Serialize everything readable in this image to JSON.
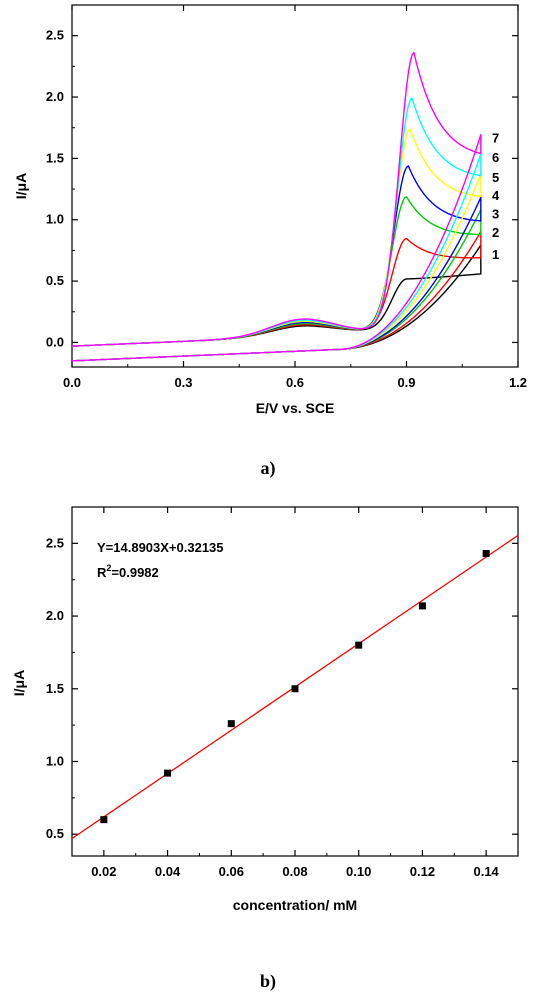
{
  "chart_data": [
    {
      "panel_label": "a)",
      "type": "line",
      "xlabel": "E/V vs. SCE",
      "ylabel": "I/μA",
      "xlim": [
        0.0,
        1.2
      ],
      "ylim": [
        -0.2,
        2.75
      ],
      "xticks": [
        "0.0",
        "0.3",
        "0.6",
        "0.9",
        "1.2"
      ],
      "yticks": [
        "0.0",
        "0.5",
        "1.0",
        "1.5",
        "2.0",
        "2.5"
      ],
      "grid": false,
      "legend": "none",
      "series": [
        {
          "name": "1",
          "color": "#000000",
          "peak_x": 0.9,
          "peak_y": 0.78,
          "end_y": 0.77,
          "ret_end_y": 0.78
        },
        {
          "name": "2",
          "color": "#ff0000",
          "peak_x": 0.9,
          "peak_y": 1.11,
          "end_y": 0.89,
          "ret_end_y": 0.89
        },
        {
          "name": "3",
          "color": "#00cc00",
          "peak_x": 0.9,
          "peak_y": 1.45,
          "end_y": 1.07,
          "ret_end_y": 1.07
        },
        {
          "name": "4",
          "color": "#0000ff",
          "peak_x": 0.905,
          "peak_y": 1.7,
          "end_y": 1.17,
          "ret_end_y": 1.17
        },
        {
          "name": "5",
          "color": "#ffff00",
          "peak_x": 0.91,
          "peak_y": 2.0,
          "end_y": 1.36,
          "ret_end_y": 1.36
        },
        {
          "name": "6",
          "color": "#00ffff",
          "peak_x": 0.915,
          "peak_y": 2.25,
          "end_y": 1.52,
          "ret_end_y": 1.52
        },
        {
          "name": "7",
          "color": "#ff00ff",
          "peak_x": 0.92,
          "peak_y": 2.62,
          "end_y": 1.68,
          "ret_end_y": 1.68
        }
      ]
    },
    {
      "panel_label": "b)",
      "type": "scatter",
      "xlabel": "concentration/ mM",
      "ylabel": "I/μA",
      "xlim": [
        0.01,
        0.15
      ],
      "ylim": [
        0.35,
        2.75
      ],
      "xticks": [
        "0.02",
        "0.04",
        "0.06",
        "0.08",
        "0.10",
        "0.12",
        "0.14"
      ],
      "yticks": [
        "0.5",
        "1.0",
        "1.5",
        "2.0",
        "2.5"
      ],
      "grid": false,
      "legend": "none",
      "x": [
        0.02,
        0.04,
        0.06,
        0.08,
        0.1,
        0.12,
        0.14
      ],
      "y": [
        0.6,
        0.92,
        1.26,
        1.5,
        1.8,
        2.07,
        2.43
      ],
      "fit": {
        "slope": 14.8903,
        "intercept": 0.32135,
        "color": "#ff0000"
      },
      "equation": "Y=14.8903X+0.32135",
      "r2_prefix": "R",
      "r2_sup": "2",
      "r2_value": "=0.9982"
    }
  ]
}
